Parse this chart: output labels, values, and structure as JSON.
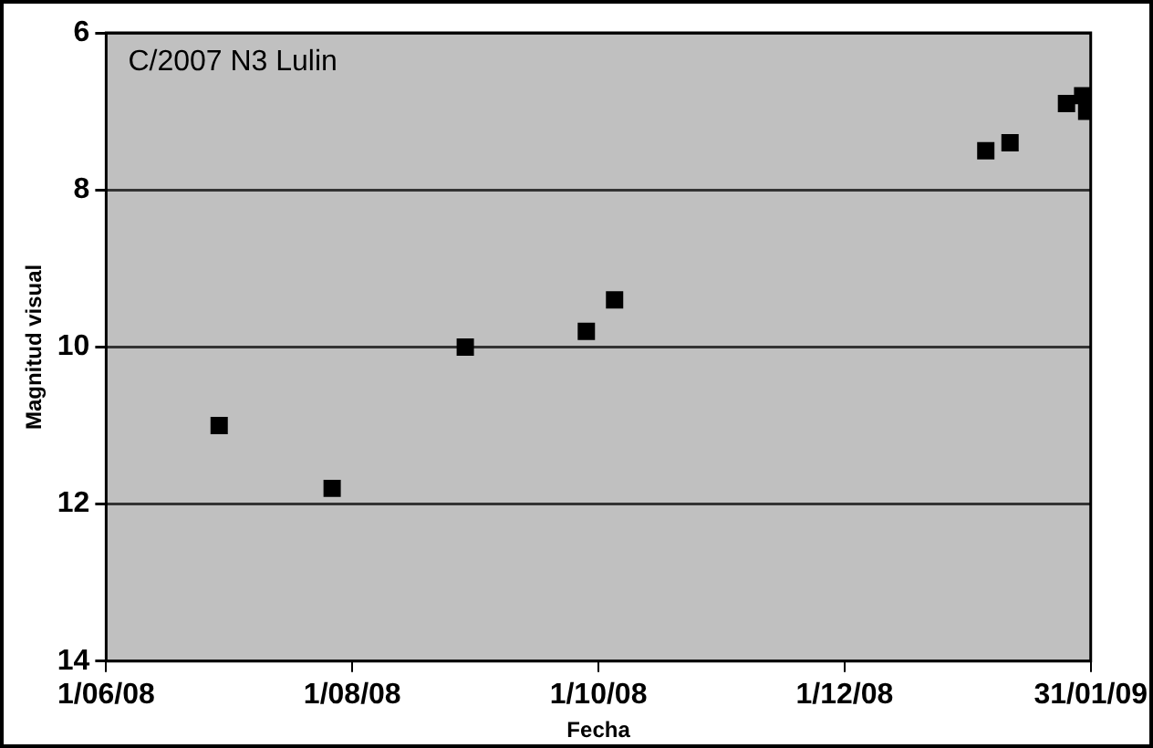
{
  "chart_data": {
    "type": "scatter",
    "title": "C/2007 N3 Lulin",
    "xlabel": "Fecha",
    "ylabel": "Magnitud visual",
    "x": [
      "2008-06-29",
      "2008-07-27",
      "2008-08-29",
      "2008-09-28",
      "2008-10-05",
      "2009-01-05",
      "2009-01-11",
      "2009-01-25",
      "2009-01-29",
      "2009-01-30"
    ],
    "values": [
      11.0,
      11.8,
      10.0,
      9.8,
      9.4,
      7.5,
      7.4,
      6.9,
      6.8,
      7.0
    ],
    "color": "#000000",
    "marker": "square",
    "xlim": [
      "2008-06-01",
      "2009-01-31"
    ],
    "xticks": [
      {
        "value": "2008-06-01",
        "label": "1/06/08"
      },
      {
        "value": "2008-08-01",
        "label": "1/08/08"
      },
      {
        "value": "2008-10-01",
        "label": "1/10/08"
      },
      {
        "value": "2008-12-01",
        "label": "1/12/08"
      },
      {
        "value": "2009-01-31",
        "label": "31/01/09"
      }
    ],
    "ylim": [
      14,
      6
    ],
    "yticks": [
      6,
      8,
      10,
      12,
      14
    ],
    "grid": "y",
    "legend": false
  }
}
